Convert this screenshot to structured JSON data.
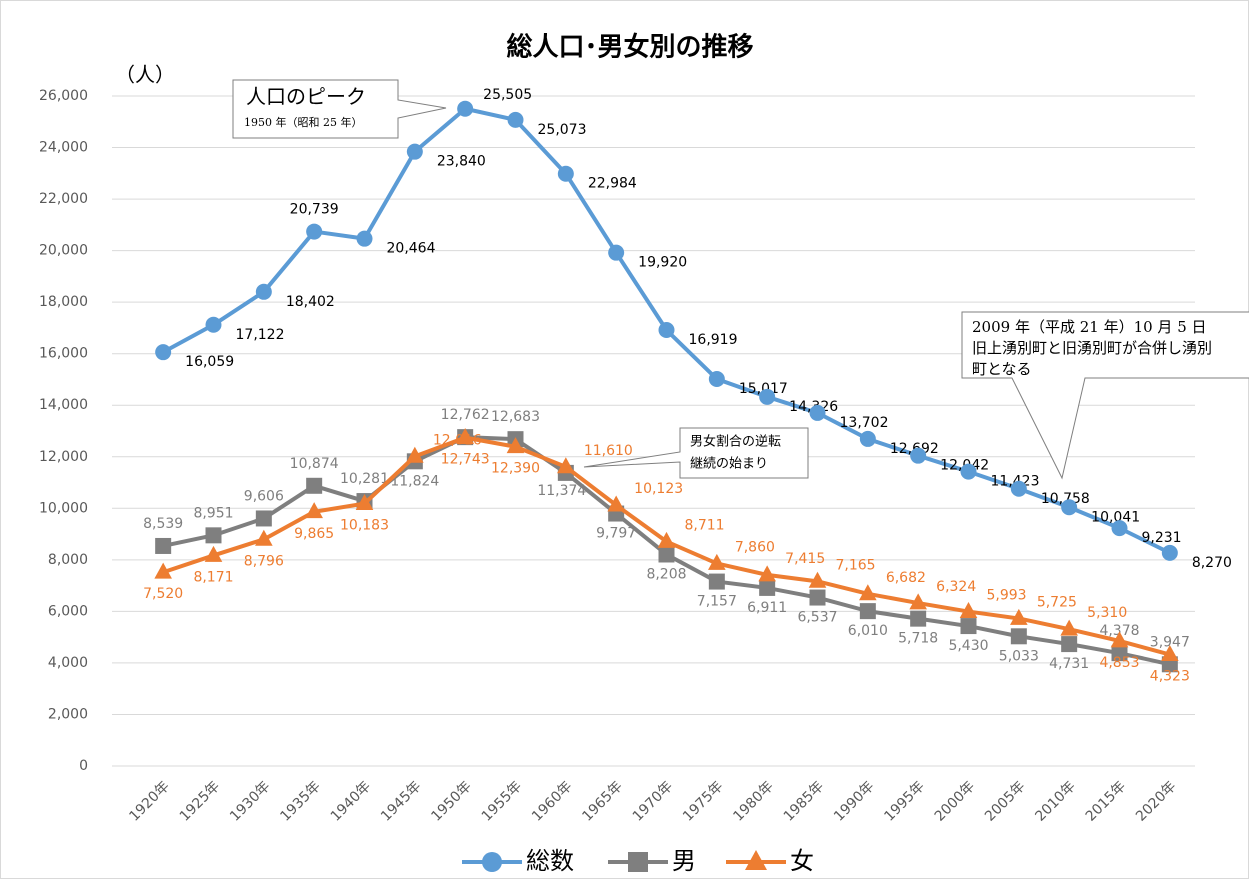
{
  "chart_data": {
    "type": "line",
    "title": "総人口･男女別の推移",
    "y_axis_label": "（人）",
    "categories": [
      "1920年",
      "1925年",
      "1930年",
      "1935年",
      "1940年",
      "1945年",
      "1950年",
      "1955年",
      "1960年",
      "1965年",
      "1970年",
      "1975年",
      "1980年",
      "1985年",
      "1990年",
      "1995年",
      "2000年",
      "2005年",
      "2010年",
      "2015年",
      "2020年"
    ],
    "series": [
      {
        "name": "総数",
        "color": "#5b9bd5",
        "marker": "circle",
        "values": [
          16059,
          17122,
          18402,
          20739,
          20464,
          23840,
          25505,
          25073,
          22984,
          19920,
          16919,
          15017,
          14326,
          13702,
          12692,
          12042,
          11423,
          10758,
          10041,
          9231,
          8270
        ],
        "value_labels": [
          "16,059",
          "17,122",
          "18,402",
          "20,739",
          "20,464",
          "23,840",
          "25,505",
          "25,073",
          "22,984",
          "19,920",
          "16,919",
          "15,017",
          "14,326",
          "13,702",
          "12,692",
          "12,042",
          "11,423",
          "10,758",
          "10,041",
          "9,231",
          "8,270"
        ]
      },
      {
        "name": "男",
        "color": "#7f7f7f",
        "marker": "square",
        "values": [
          8539,
          8951,
          9606,
          10874,
          10281,
          11824,
          12762,
          12683,
          11374,
          9797,
          8208,
          7157,
          6911,
          6537,
          6010,
          5718,
          5430,
          5033,
          4731,
          4378,
          3947
        ],
        "value_labels": [
          "8,539",
          "8,951",
          "9,606",
          "10,874",
          "10,281",
          "11,824",
          "12,762",
          "12,683",
          "11,374",
          "9,797",
          "8,208",
          "7,157",
          "6,911",
          "6,537",
          "6,010",
          "5,718",
          "5,430",
          "5,033",
          "4,731",
          "4,378",
          "3,947"
        ]
      },
      {
        "name": "女",
        "color": "#ed7d31",
        "marker": "triangle",
        "values": [
          7520,
          8171,
          8796,
          9865,
          10183,
          12016,
          12743,
          12390,
          11610,
          10123,
          8711,
          7860,
          7415,
          7165,
          6682,
          6324,
          5993,
          5725,
          5310,
          4853,
          4323
        ],
        "value_labels": [
          "7,520",
          "8,171",
          "8,796",
          "9,865",
          "10,183",
          "12,016",
          "12,743",
          "12,390",
          "11,610",
          "10,123",
          "8,711",
          "7,860",
          "7,415",
          "7,165",
          "6,682",
          "6,324",
          "5,993",
          "5,725",
          "5,310",
          "4,853",
          "4,323"
        ]
      }
    ],
    "ylim": [
      0,
      26000
    ],
    "yticks": [
      0,
      {
        "value": 2000,
        "label": "2,000"
      },
      {
        "value": 4000,
        "label": "4,000"
      },
      {
        "value": 6000,
        "label": "6,000"
      },
      {
        "value": 8000,
        "label": "8,000"
      },
      {
        "value": 10000,
        "label": "10,000"
      },
      {
        "value": 12000,
        "label": "12,000"
      },
      {
        "value": 14000,
        "label": "14,000"
      },
      {
        "value": 16000,
        "label": "16,000"
      },
      {
        "value": 18000,
        "label": "18,000"
      },
      {
        "value": 20000,
        "label": "20,000"
      },
      {
        "value": 22000,
        "label": "22,000"
      },
      {
        "value": 24000,
        "label": "24,000"
      },
      {
        "value": 26000,
        "label": "26,000"
      }
    ],
    "grid": true,
    "legend": "bottom",
    "annotations": [
      {
        "lines": [
          "人口のピーク",
          "1950 年（昭和 25 年）"
        ]
      },
      {
        "lines": [
          "男女割合の逆転",
          "継続の始まり"
        ]
      },
      {
        "lines": [
          "2009 年（平成 21 年）10 月 5 日",
          "旧上湧別町と旧湧別町が合併し湧別",
          "町となる"
        ]
      }
    ]
  }
}
